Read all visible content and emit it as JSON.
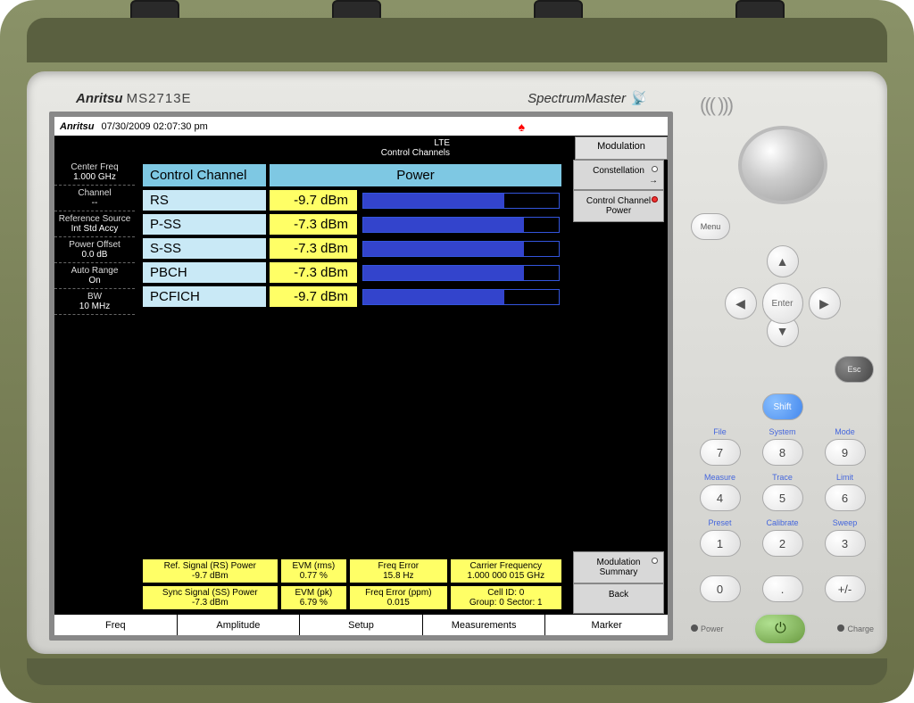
{
  "bezel": {
    "brand": "Anritsu",
    "model": "MS2713E",
    "product": "SpectrumMaster"
  },
  "screen_header": {
    "logo": "Anritsu",
    "timestamp": "07/30/2009 02:07:30 pm",
    "mode_title": "Modulation",
    "subtitle_line1": "LTE",
    "subtitle_line2": "Control Channels"
  },
  "left_panel": [
    {
      "label": "Center Freq",
      "value": "1.000 GHz"
    },
    {
      "label": "Channel",
      "value": "--"
    },
    {
      "label": "Reference Source",
      "value": "Int Std Accy"
    },
    {
      "label": "Power Offset",
      "value": "0.0 dB"
    },
    {
      "label": "Auto Range",
      "value": "On"
    },
    {
      "label": "BW",
      "value": "10 MHz"
    }
  ],
  "control_channel": {
    "header_name": "Control Channel",
    "header_power": "Power",
    "rows": [
      {
        "name": "RS",
        "value": "-9.7 dBm",
        "bar_pct": 72
      },
      {
        "name": "P-SS",
        "value": "-7.3 dBm",
        "bar_pct": 82
      },
      {
        "name": "S-SS",
        "value": "-7.3 dBm",
        "bar_pct": 82
      },
      {
        "name": "PBCH",
        "value": "-7.3 dBm",
        "bar_pct": 82
      },
      {
        "name": "PCFICH",
        "value": "-9.7 dBm",
        "bar_pct": 72
      }
    ],
    "colors": {
      "header_bg": "#7ec8e3",
      "name_bg": "#c9e9f6",
      "value_bg": "#ffff66",
      "bar_fill": "#3344cc",
      "bar_border": "#3355dd"
    }
  },
  "summary": {
    "row1": [
      {
        "label": "Ref. Signal (RS) Power",
        "value": "-9.7 dBm"
      },
      {
        "label": "EVM (rms)",
        "value": "0.77 %"
      },
      {
        "label": "Freq Error",
        "value": "15.8 Hz"
      },
      {
        "label": "Carrier Frequency",
        "value": "1.000 000 015 GHz"
      }
    ],
    "row2": [
      {
        "label": "Sync Signal (SS) Power",
        "value": "-7.3 dBm"
      },
      {
        "label": "EVM (pk)",
        "value": "6.79 %"
      },
      {
        "label": "Freq Error (ppm)",
        "value": "0.015"
      },
      {
        "label": "Cell ID: 0",
        "value": "Group: 0    Sector: 1"
      }
    ]
  },
  "softkeys_top": [
    {
      "label": "Constellation",
      "dot": "white",
      "arrow": true
    },
    {
      "label": "Control Channel",
      "sub": "Power",
      "dot": "red"
    }
  ],
  "softkeys_bottom": [
    {
      "label": "Modulation",
      "sub": "Summary",
      "dot": "white"
    },
    {
      "label": "Back"
    }
  ],
  "bottom_menu": [
    "Freq",
    "Amplitude",
    "Setup",
    "Measurements",
    "Marker"
  ],
  "hw": {
    "menu": "Menu",
    "enter": "Enter",
    "esc": "Esc",
    "shift": "Shift",
    "keys": [
      {
        "label": "File",
        "digit": "7"
      },
      {
        "label": "System",
        "digit": "8"
      },
      {
        "label": "Mode",
        "digit": "9"
      },
      {
        "label": "Measure",
        "digit": "4"
      },
      {
        "label": "Trace",
        "digit": "5"
      },
      {
        "label": "Limit",
        "digit": "6"
      },
      {
        "label": "Preset",
        "digit": "1"
      },
      {
        "label": "Calibrate",
        "digit": "2"
      },
      {
        "label": "Sweep",
        "digit": "3"
      },
      {
        "label": "",
        "digit": "0"
      },
      {
        "label": "",
        "digit": "."
      },
      {
        "label": "",
        "digit": "+/-"
      }
    ],
    "power_label": "Power",
    "charge_label": "Charge"
  }
}
